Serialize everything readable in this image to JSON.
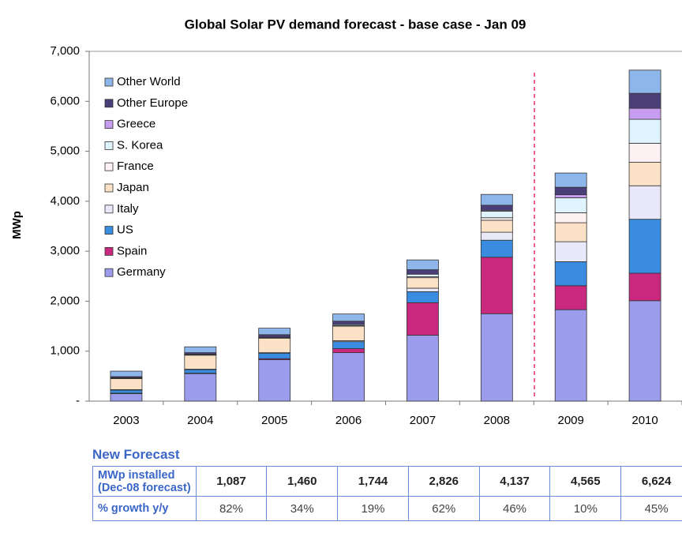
{
  "chart_data": {
    "type": "stacked-bar",
    "title": "Global Solar PV demand forecast - base case - Jan 09",
    "y_label": "MWp",
    "categories": [
      "2003",
      "2004",
      "2005",
      "2006",
      "2007",
      "2008",
      "2009",
      "2010"
    ],
    "series": [
      {
        "name": "Germany",
        "color": "#9c9cec",
        "values": [
          150,
          550,
          830,
          970,
          1320,
          1750,
          1830,
          2010
        ]
      },
      {
        "name": "Spain",
        "color": "#c8287e",
        "values": [
          10,
          10,
          20,
          80,
          650,
          1130,
          480,
          550
        ]
      },
      {
        "name": "US",
        "color": "#3a8ce0",
        "values": [
          60,
          70,
          110,
          140,
          220,
          340,
          480,
          1080
        ]
      },
      {
        "name": "Italy",
        "color": "#e8e8f8",
        "values": [
          10,
          10,
          10,
          20,
          70,
          160,
          400,
          670
        ]
      },
      {
        "name": "Japan",
        "color": "#fbe2c6",
        "values": [
          220,
          280,
          290,
          290,
          210,
          240,
          380,
          470
        ]
      },
      {
        "name": "France",
        "color": "#fdf1f3",
        "values": [
          10,
          10,
          10,
          10,
          20,
          50,
          200,
          380
        ]
      },
      {
        "name": "S. Korea",
        "color": "#def3fb",
        "values": [
          10,
          10,
          10,
          20,
          50,
          130,
          300,
          480
        ]
      },
      {
        "name": "Greece",
        "color": "#c79df0",
        "values": [
          0,
          0,
          0,
          0,
          0,
          20,
          60,
          220
        ]
      },
      {
        "name": "Other Europe",
        "color": "#4a3f78",
        "values": [
          20,
          30,
          50,
          70,
          90,
          100,
          150,
          300
        ]
      },
      {
        "name": "Other World",
        "color": "#8fb6ea",
        "values": [
          110,
          117,
          130,
          144,
          196,
          217,
          285,
          464
        ]
      }
    ],
    "ylim": [
      0,
      7000
    ],
    "yticks": [
      {
        "value": 0,
        "label": "-"
      },
      {
        "value": 1000,
        "label": "1,000"
      },
      {
        "value": 2000,
        "label": "2,000"
      },
      {
        "value": 3000,
        "label": "3,000"
      },
      {
        "value": 4000,
        "label": "4,000"
      },
      {
        "value": 5000,
        "label": "5,000"
      },
      {
        "value": 6000,
        "label": "6,000"
      },
      {
        "value": 7000,
        "label": "7,000"
      }
    ]
  },
  "forecast_table": {
    "title": "New Forecast",
    "rows": [
      {
        "header": [
          "MWp installed",
          "(Dec-08 forecast)"
        ],
        "cells": [
          "1,087",
          "1,460",
          "1,744",
          "2,826",
          "4,137",
          "4,565",
          "6,624"
        ]
      },
      {
        "header": [
          "% growth y/y"
        ],
        "cells": [
          "82%",
          "34%",
          "19%",
          "62%",
          "46%",
          "10%",
          "45%"
        ]
      }
    ]
  }
}
